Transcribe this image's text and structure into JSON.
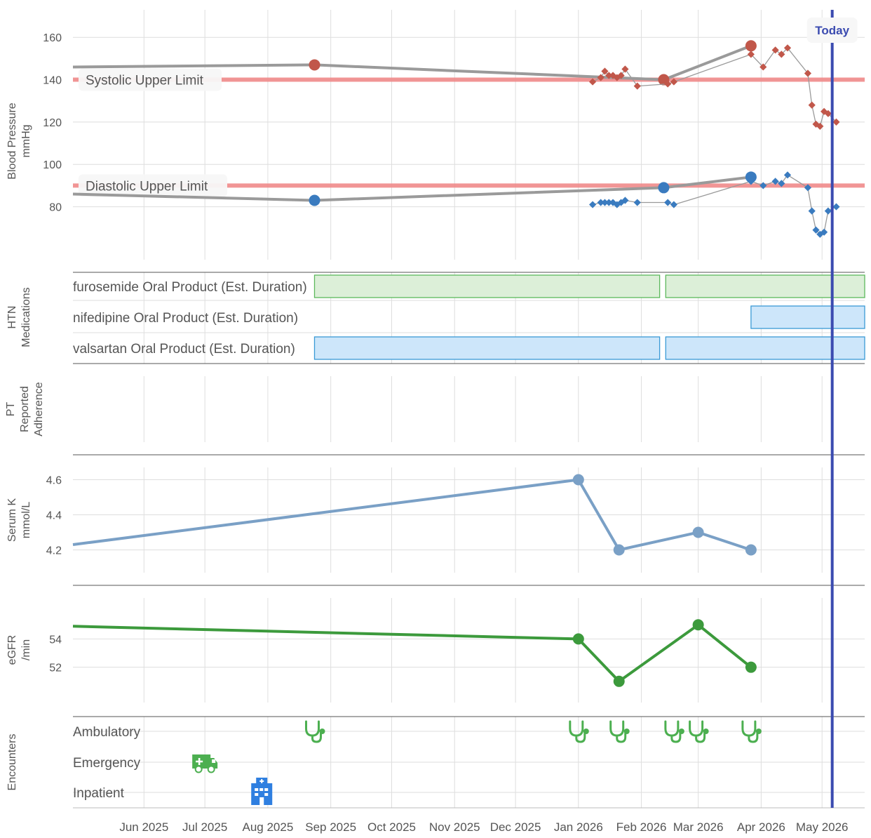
{
  "today_label": "Today",
  "colors": {
    "systolic": "#c1574a",
    "diastolic": "#3a7bbf",
    "clinic_line": "#9a9a9a",
    "limit": "#f08a8a",
    "today": "#3b4bb0",
    "potassium": "#7aa0c6",
    "egfr": "#3c9a3c",
    "furosemide_fill": "#dcefd8",
    "furosemide_border": "#5cb85c",
    "ccb_fill": "#cde6fa",
    "ccb_border": "#3a9ad6",
    "encounter_icon": "#4caf50",
    "inpatient_icon": "#2f7fe0"
  },
  "x_axis": {
    "ticks": [
      "Jun 2025",
      "Jul 2025",
      "Aug 2025",
      "Sep 2025",
      "Oct 2025",
      "Nov 2025",
      "Dec 2025",
      "Jan 2026",
      "Feb 2026",
      "Mar 2026",
      "Apr 2026",
      "May 2026"
    ],
    "tick_dates": [
      "2025-06-01",
      "2025-07-01",
      "2025-08-01",
      "2025-09-01",
      "2025-10-01",
      "2025-11-01",
      "2025-12-01",
      "2026-01-01",
      "2026-02-01",
      "2026-03-01",
      "2026-04-01",
      "2026-05-01"
    ],
    "range": [
      "2025-04-27",
      "2026-05-22"
    ],
    "today": "2026-05-06"
  },
  "panels": {
    "bp": {
      "ylabel": "Blood Pressure",
      "unit": "mmHg"
    },
    "meds": {
      "ylabel": "HTN",
      "ylabel2": "Medications"
    },
    "adherence": {
      "ylabel": "PT",
      "ylabel2": "Reported",
      "ylabel3": "Adherence"
    },
    "k": {
      "ylabel": "Serum K",
      "unit": "mmol/L"
    },
    "egfr": {
      "ylabel": "eGFR",
      "unit": "/min"
    },
    "enc": {
      "ylabel": "Encounters"
    }
  },
  "chart_data": [
    {
      "type": "line",
      "panel": "bp",
      "ylabel": "Blood Pressure mmHg",
      "yticks": [
        80,
        100,
        120,
        140,
        160
      ],
      "ylim": [
        55,
        173
      ],
      "limits": [
        {
          "label": "Systolic Upper Limit",
          "value": 140
        },
        {
          "label": "Diastolic Upper Limit",
          "value": 90
        }
      ],
      "series": [
        {
          "role": "systolic_clinic",
          "points": [
            [
              "2025-04-27",
              146
            ],
            [
              "2025-08-24",
              147
            ],
            [
              "2026-02-12",
              140
            ],
            [
              "2026-03-27",
              156
            ]
          ]
        },
        {
          "role": "diastolic_clinic",
          "points": [
            [
              "2025-04-27",
              86
            ],
            [
              "2025-08-24",
              83
            ],
            [
              "2026-02-12",
              89
            ],
            [
              "2026-03-27",
              94
            ]
          ]
        },
        {
          "role": "systolic_home",
          "points": [
            [
              "2026-01-08",
              139
            ],
            [
              "2026-01-12",
              141
            ],
            [
              "2026-01-14",
              144
            ],
            [
              "2026-01-16",
              142
            ],
            [
              "2026-01-18",
              142
            ],
            [
              "2026-01-20",
              141
            ],
            [
              "2026-01-22",
              142
            ],
            [
              "2026-01-24",
              145
            ],
            [
              "2026-01-30",
              137
            ],
            [
              "2026-02-14",
              138
            ],
            [
              "2026-02-17",
              139
            ],
            [
              "2026-03-27",
              152
            ],
            [
              "2026-04-02",
              146
            ],
            [
              "2026-04-08",
              154
            ],
            [
              "2026-04-11",
              152
            ],
            [
              "2026-04-14",
              155
            ],
            [
              "2026-04-24",
              143
            ],
            [
              "2026-04-26",
              128
            ],
            [
              "2026-04-28",
              119
            ],
            [
              "2026-04-30",
              118
            ],
            [
              "2026-05-02",
              125
            ],
            [
              "2026-05-04",
              124
            ],
            [
              "2026-05-08",
              120
            ]
          ]
        },
        {
          "role": "diastolic_home",
          "points": [
            [
              "2026-01-08",
              81
            ],
            [
              "2026-01-12",
              82
            ],
            [
              "2026-01-14",
              82
            ],
            [
              "2026-01-16",
              82
            ],
            [
              "2026-01-18",
              82
            ],
            [
              "2026-01-20",
              81
            ],
            [
              "2026-01-22",
              82
            ],
            [
              "2026-01-24",
              83
            ],
            [
              "2026-01-30",
              82
            ],
            [
              "2026-02-14",
              82
            ],
            [
              "2026-02-17",
              81
            ],
            [
              "2026-03-27",
              92
            ],
            [
              "2026-04-02",
              90
            ],
            [
              "2026-04-08",
              92
            ],
            [
              "2026-04-11",
              91
            ],
            [
              "2026-04-14",
              95
            ],
            [
              "2026-04-24",
              89
            ],
            [
              "2026-04-26",
              78
            ],
            [
              "2026-04-28",
              69
            ],
            [
              "2026-04-30",
              67
            ],
            [
              "2026-05-02",
              68
            ],
            [
              "2026-05-04",
              78
            ],
            [
              "2026-05-08",
              80
            ]
          ]
        }
      ]
    },
    {
      "type": "gantt",
      "panel": "meds",
      "rows": [
        {
          "label": "furosemide Oral Product (Est. Duration)",
          "color_key": "furosemide",
          "bars": [
            [
              "2025-08-24",
              "2026-02-10"
            ],
            [
              "2026-02-13",
              "2026-05-22"
            ]
          ]
        },
        {
          "label": "nifedipine Oral Product (Est. Duration)",
          "color_key": "ccb",
          "bars": [
            [
              "2026-03-27",
              "2026-05-22"
            ]
          ]
        },
        {
          "label": "valsartan Oral Product (Est. Duration)",
          "color_key": "ccb",
          "bars": [
            [
              "2025-08-24",
              "2026-02-10"
            ],
            [
              "2026-02-13",
              "2026-05-22"
            ]
          ]
        }
      ]
    },
    {
      "type": "line",
      "panel": "k",
      "ylabel": "Serum K mmol/L",
      "yticks": [
        4.2,
        4.4,
        4.6
      ],
      "ylim": [
        4.07,
        4.67
      ],
      "series": [
        {
          "role": "potassium",
          "points": [
            [
              "2025-04-27",
              4.23
            ],
            [
              "2026-01-01",
              4.6
            ],
            [
              "2026-01-21",
              4.2
            ],
            [
              "2026-03-01",
              4.3
            ],
            [
              "2026-03-27",
              4.2
            ]
          ]
        }
      ]
    },
    {
      "type": "line",
      "panel": "egfr",
      "ylabel": "eGFR /min",
      "yticks": [
        52,
        54
      ],
      "ylim": [
        49.5,
        56.9
      ],
      "series": [
        {
          "role": "egfr",
          "points": [
            [
              "2025-04-27",
              54.9
            ],
            [
              "2026-01-01",
              54
            ],
            [
              "2026-01-21",
              51
            ],
            [
              "2026-03-01",
              55
            ],
            [
              "2026-03-27",
              52
            ]
          ]
        }
      ]
    },
    {
      "type": "scatter",
      "panel": "enc",
      "categories": [
        "Ambulatory",
        "Emergency",
        "Inpatient"
      ],
      "points": [
        {
          "category": "Ambulatory",
          "date": "2025-08-24",
          "icon": "stethoscope-icon"
        },
        {
          "category": "Ambulatory",
          "date": "2026-01-01",
          "icon": "stethoscope-icon"
        },
        {
          "category": "Ambulatory",
          "date": "2026-01-21",
          "icon": "stethoscope-icon"
        },
        {
          "category": "Ambulatory",
          "date": "2026-02-17",
          "icon": "stethoscope-icon"
        },
        {
          "category": "Ambulatory",
          "date": "2026-03-01",
          "icon": "stethoscope-icon"
        },
        {
          "category": "Ambulatory",
          "date": "2026-03-27",
          "icon": "stethoscope-icon"
        },
        {
          "category": "Emergency",
          "date": "2025-07-01",
          "icon": "ambulance-icon"
        },
        {
          "category": "Inpatient",
          "date": "2025-07-29",
          "icon": "hospital-icon"
        }
      ]
    }
  ]
}
